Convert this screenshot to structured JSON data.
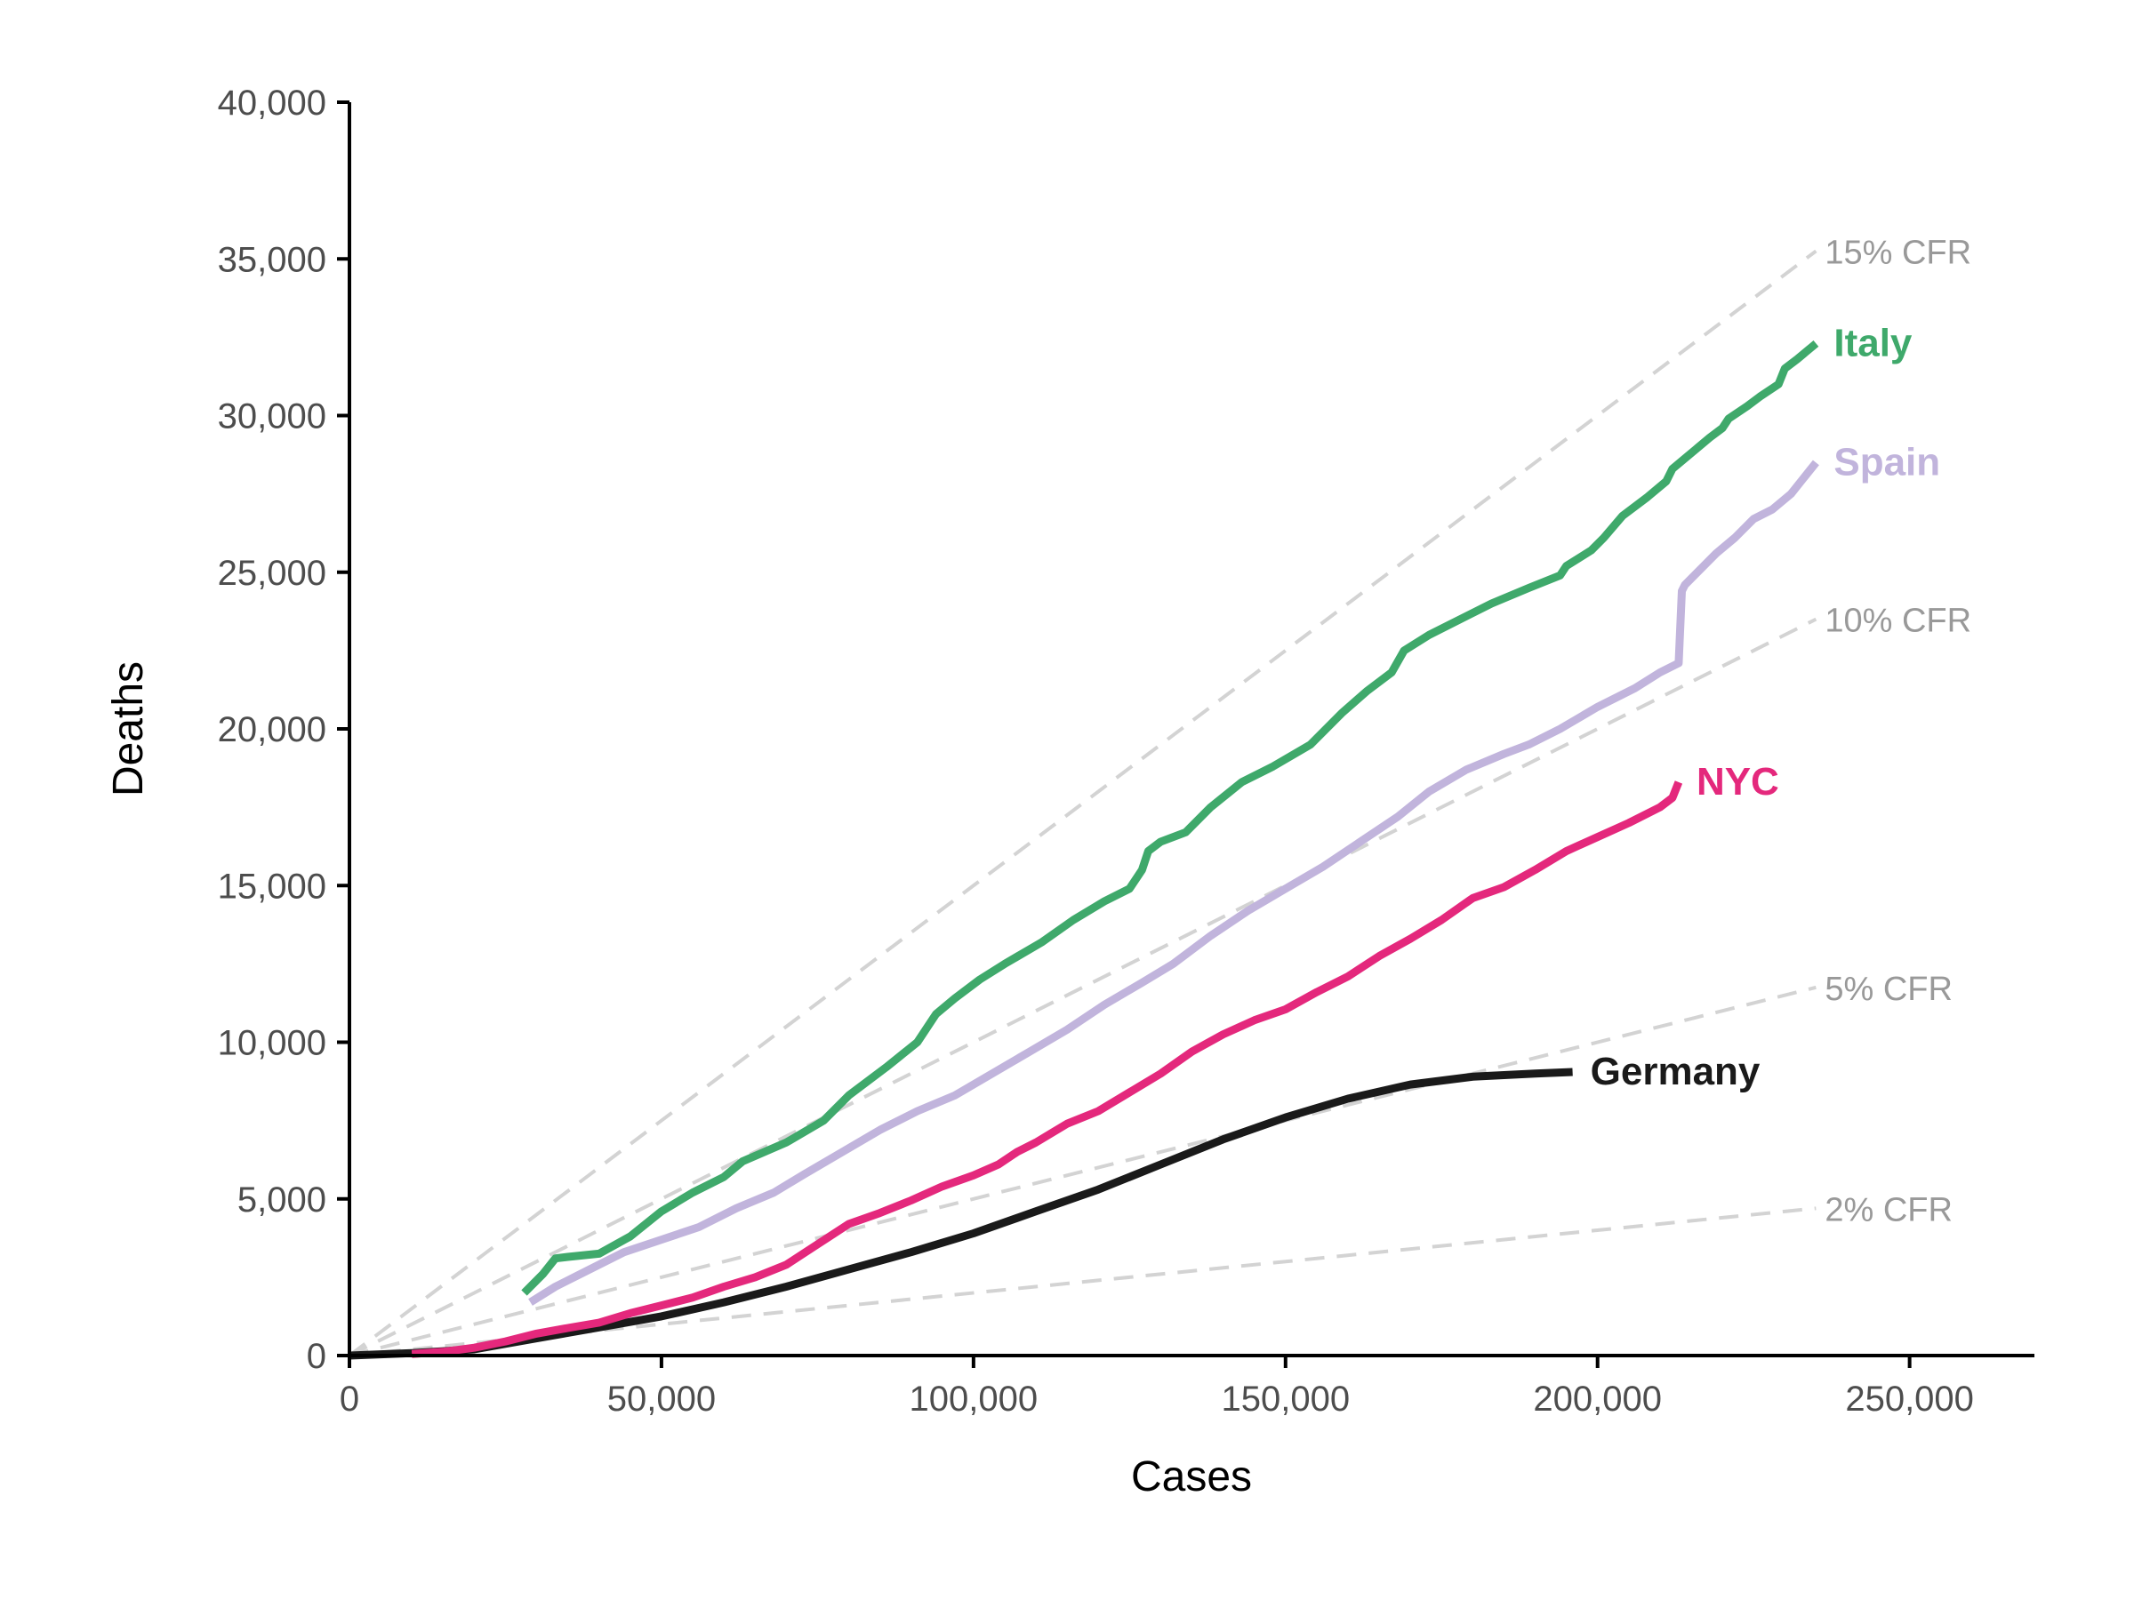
{
  "chart_data": {
    "type": "line",
    "title": "",
    "xlabel": "Cases",
    "ylabel": "Deaths",
    "xlim": [
      0,
      270000
    ],
    "ylim": [
      0,
      40000
    ],
    "x_ticks": [
      0,
      50000,
      100000,
      150000,
      200000,
      250000
    ],
    "x_tick_labels": [
      "0",
      "50,000",
      "100,000",
      "150,000",
      "200,000",
      "250,000"
    ],
    "y_ticks": [
      0,
      5000,
      10000,
      15000,
      20000,
      25000,
      30000,
      35000,
      40000
    ],
    "y_tick_labels": [
      "0",
      "5,000",
      "10,000",
      "15,000",
      "20,000",
      "25,000",
      "30,000",
      "35,000",
      "40,000"
    ],
    "grid": false,
    "legend": "direct labels at line ends",
    "reference_lines": [
      {
        "name": "15% CFR",
        "rate": 0.15,
        "x": [
          0,
          235000
        ],
        "y": [
          0,
          35250
        ]
      },
      {
        "name": "10% CFR",
        "rate": 0.1,
        "x": [
          0,
          235000
        ],
        "y": [
          0,
          23500
        ]
      },
      {
        "name": "5% CFR",
        "rate": 0.05,
        "x": [
          0,
          235000
        ],
        "y": [
          0,
          11750
        ]
      },
      {
        "name": "2% CFR",
        "rate": 0.02,
        "x": [
          0,
          235000
        ],
        "y": [
          0,
          4700
        ]
      }
    ],
    "series": [
      {
        "name": "Italy",
        "color": "#3fa96b",
        "x": [
          28000,
          31000,
          33000,
          35000,
          40000,
          45000,
          50000,
          55000,
          60000,
          63000,
          70000,
          76000,
          80000,
          86000,
          91000,
          94000,
          97000,
          101000,
          105000,
          111000,
          116000,
          121000,
          125000,
          127000,
          128000,
          130000,
          134000,
          138000,
          143000,
          148000,
          154000,
          159000,
          163000,
          167000,
          169000,
          173000,
          178000,
          183000,
          189000,
          194000,
          195000,
          199000,
          201000,
          204000,
          208000,
          211000,
          212000,
          215000,
          218000,
          220000,
          221000,
          224000,
          226000,
          229000,
          230000,
          232000,
          235000
        ],
        "y": [
          2000,
          2600,
          3100,
          3150,
          3250,
          3800,
          4600,
          5200,
          5700,
          6200,
          6800,
          7500,
          8300,
          9200,
          10000,
          10900,
          11400,
          12000,
          12500,
          13200,
          13900,
          14500,
          14900,
          15500,
          16100,
          16400,
          16700,
          17500,
          18300,
          18800,
          19500,
          20500,
          21200,
          21800,
          22500,
          23000,
          23500,
          24000,
          24500,
          24900,
          25200,
          25700,
          26100,
          26800,
          27400,
          27900,
          28300,
          28800,
          29300,
          29600,
          29900,
          30300,
          30600,
          31000,
          31500,
          31800,
          32300
        ]
      },
      {
        "name": "Spain",
        "color": "#c1b4dc",
        "x": [
          29000,
          33000,
          38000,
          44000,
          50000,
          56000,
          62000,
          68000,
          73000,
          79000,
          85000,
          91000,
          97000,
          103000,
          109000,
          115000,
          121000,
          127000,
          132000,
          138000,
          144000,
          150000,
          156000,
          162000,
          168000,
          173000,
          179000,
          185000,
          189000,
          194000,
          200000,
          206000,
          210000,
          213000,
          213500,
          214000,
          216000,
          219000,
          222000,
          225000,
          228000,
          231000,
          233000,
          235000
        ],
        "y": [
          1700,
          2200,
          2700,
          3300,
          3700,
          4100,
          4700,
          5200,
          5800,
          6500,
          7200,
          7800,
          8300,
          9000,
          9700,
          10400,
          11200,
          11900,
          12500,
          13400,
          14200,
          14900,
          15600,
          16400,
          17200,
          18000,
          18700,
          19200,
          19500,
          20000,
          20700,
          21300,
          21800,
          22100,
          24400,
          24600,
          25000,
          25600,
          26100,
          26700,
          27000,
          27500,
          28000,
          28500
        ]
      },
      {
        "name": "NYC",
        "color": "#e4287c",
        "x": [
          10000,
          15000,
          20000,
          25000,
          30000,
          35000,
          40000,
          45000,
          50000,
          55000,
          60000,
          65000,
          70000,
          75000,
          80000,
          85000,
          90000,
          95000,
          100000,
          104000,
          107000,
          110000,
          115000,
          120000,
          125000,
          130000,
          135000,
          140000,
          145000,
          150000,
          155000,
          160000,
          165000,
          170000,
          175000,
          180000,
          185000,
          190000,
          195000,
          200000,
          205000,
          210000,
          212000,
          213000
        ],
        "y": [
          50,
          120,
          250,
          450,
          700,
          880,
          1050,
          1350,
          1600,
          1850,
          2200,
          2500,
          2900,
          3550,
          4200,
          4550,
          4950,
          5400,
          5750,
          6100,
          6500,
          6800,
          7400,
          7800,
          8400,
          9000,
          9700,
          10250,
          10700,
          11050,
          11600,
          12100,
          12750,
          13300,
          13900,
          14600,
          14950,
          15500,
          16100,
          16550,
          17000,
          17500,
          17800,
          18300
        ]
      },
      {
        "name": "Germany",
        "color": "#1a1a1a",
        "x": [
          0,
          10000,
          20000,
          30000,
          40000,
          50000,
          60000,
          70000,
          80000,
          90000,
          100000,
          110000,
          120000,
          130000,
          140000,
          150000,
          160000,
          170000,
          180000,
          190000,
          196000
        ],
        "y": [
          0,
          80,
          200,
          550,
          900,
          1250,
          1700,
          2200,
          2750,
          3300,
          3900,
          4600,
          5300,
          6100,
          6900,
          7600,
          8200,
          8650,
          8900,
          9000,
          9050
        ]
      }
    ]
  }
}
